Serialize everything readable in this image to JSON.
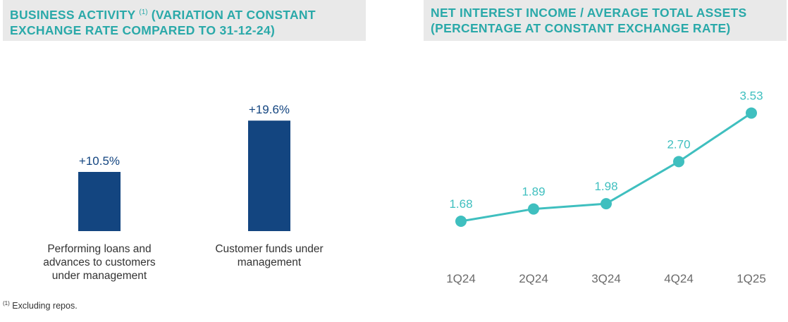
{
  "left_panel": {
    "title_part1": "BUSINESS ACTIVITY ",
    "title_sup": "(1)",
    "title_part2": " (VARIATION AT CONSTANT EXCHANGE RATE COMPARED TO 31-12-24)"
  },
  "right_panel": {
    "title": "NET INTEREST INCOME / AVERAGE TOTAL ASSETS (PERCENTAGE AT CONSTANT EXCHANGE RATE)"
  },
  "footnote": {
    "sup": "(1)",
    "text": " Excluding repos."
  },
  "chart_data": [
    {
      "type": "bar",
      "categories": [
        [
          "Performing loans and",
          "advances to customers",
          "under management"
        ],
        [
          "Customer funds under",
          "management"
        ]
      ],
      "values": [
        10.5,
        19.6
      ],
      "value_labels": [
        "+10.5%",
        "+19.6%"
      ],
      "color": "#134580",
      "title": "",
      "xlabel": "",
      "ylabel": ""
    },
    {
      "type": "line",
      "categories": [
        "1Q24",
        "2Q24",
        "3Q24",
        "4Q24",
        "1Q25"
      ],
      "values": [
        1.68,
        1.89,
        1.98,
        2.7,
        3.53
      ],
      "value_labels": [
        "1.68",
        "1.89",
        "1.98",
        "2.70",
        "3.53"
      ],
      "color": "#3fbfbf",
      "title": "",
      "xlabel": "",
      "ylabel": ""
    }
  ]
}
